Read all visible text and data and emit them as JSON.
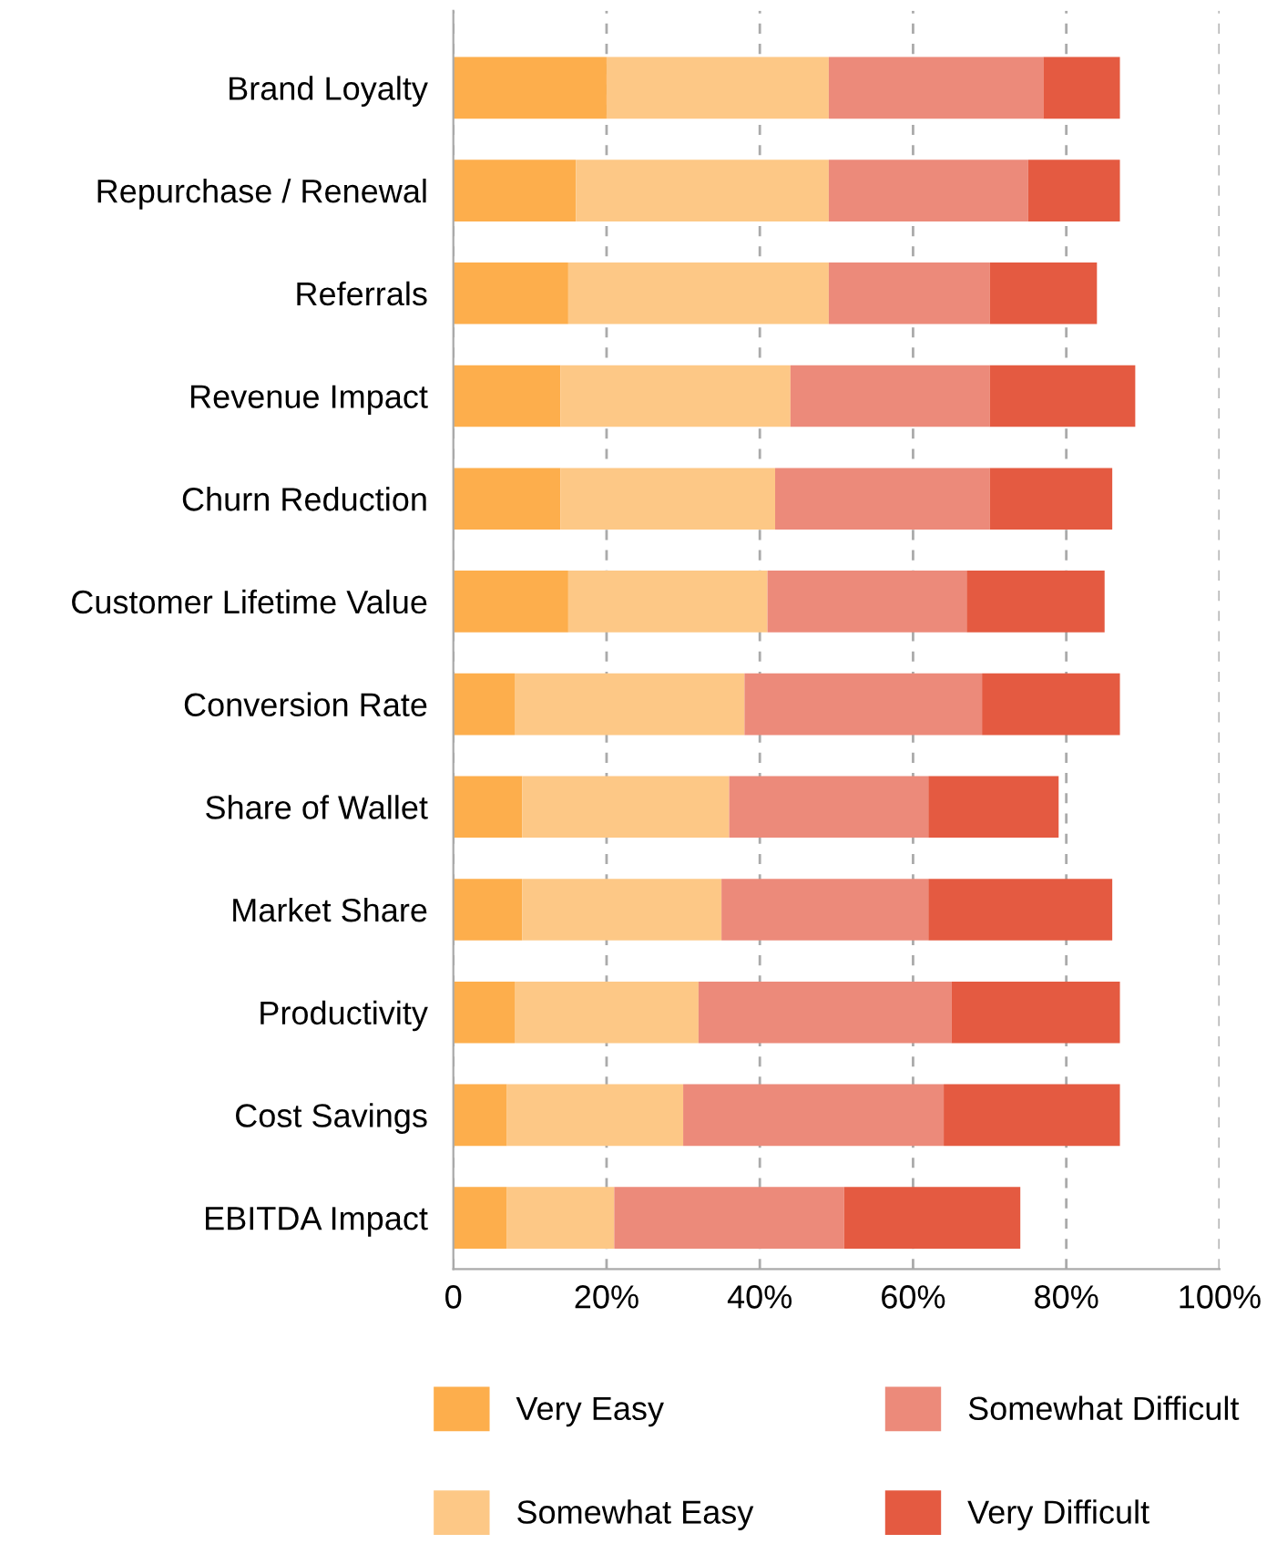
{
  "chart_data": {
    "type": "bar",
    "orientation": "horizontal",
    "stacked": true,
    "categories": [
      "Brand Loyalty",
      "Repurchase / Renewal",
      "Referrals",
      "Revenue Impact",
      "Churn Reduction",
      "Customer Lifetime Value",
      "Conversion Rate",
      "Share of Wallet",
      "Market Share",
      "Productivity",
      "Cost Savings",
      "EBITDA Impact"
    ],
    "series": [
      {
        "name": "Very Easy",
        "color": "#fdae4c",
        "values": [
          20,
          16,
          15,
          14,
          14,
          15,
          8,
          9,
          9,
          8,
          7,
          7
        ]
      },
      {
        "name": "Somewhat Easy",
        "color": "#fdc886",
        "values": [
          29,
          33,
          34,
          30,
          28,
          26,
          30,
          27,
          26,
          24,
          23,
          14
        ]
      },
      {
        "name": "Somewhat Difficult",
        "color": "#ec8a7a",
        "values": [
          28,
          26,
          21,
          26,
          28,
          26,
          31,
          26,
          27,
          33,
          34,
          30
        ]
      },
      {
        "name": "Very Difficult",
        "color": "#e45a41",
        "values": [
          10,
          12,
          14,
          19,
          16,
          18,
          18,
          17,
          24,
          22,
          23,
          23
        ]
      }
    ],
    "xlim": [
      0,
      100
    ],
    "xticks": [
      0,
      {
        "value": 20,
        "label": "20%"
      },
      {
        "value": 40,
        "label": "40%"
      },
      {
        "value": 60,
        "label": "60%"
      },
      {
        "value": 80,
        "label": "80%"
      },
      {
        "value": 100,
        "label": "100%"
      }
    ],
    "grid": "x",
    "legend": "bottom"
  }
}
